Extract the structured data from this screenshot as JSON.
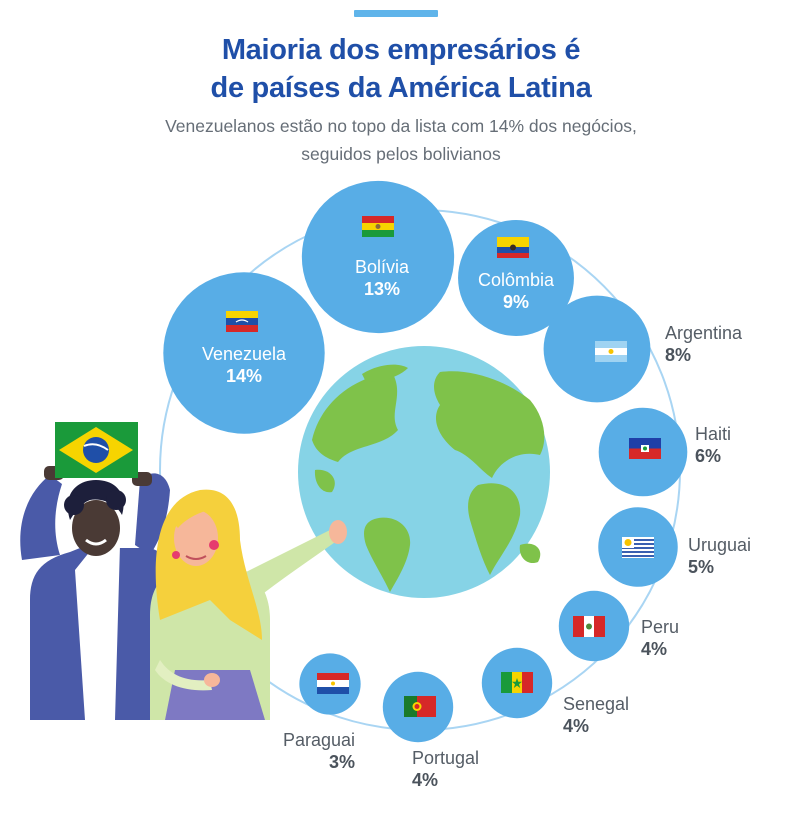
{
  "title_line1": "Maioria dos empresários é",
  "title_line2": "de países da América Latina",
  "subtitle_line1": "Venezuelanos estão no topo da lista com 14% dos negócios,",
  "subtitle_line2": "seguidos pelos bolivianos",
  "colors": {
    "title": "#1f4fa8",
    "bubble": "#58ade6",
    "ocean": "#86d3e6",
    "land": "#7fc24a",
    "ring": "#a9d5f3"
  },
  "chart_data": {
    "type": "bubble-ring",
    "unit": "%",
    "categories": [
      "Venezuela",
      "Bolívia",
      "Colômbia",
      "Argentina",
      "Haiti",
      "Uruguai",
      "Peru",
      "Senegal",
      "Portugal",
      "Paraguai"
    ],
    "values": [
      14,
      13,
      9,
      8,
      6,
      5,
      4,
      4,
      4,
      3
    ],
    "labels": [
      "14%",
      "13%",
      "9%",
      "8%",
      "6%",
      "5%",
      "4%",
      "4%",
      "4%",
      "3%"
    ]
  },
  "illustration": {
    "flag_held": "brazil-flag-icon",
    "center": "globe-icon"
  }
}
